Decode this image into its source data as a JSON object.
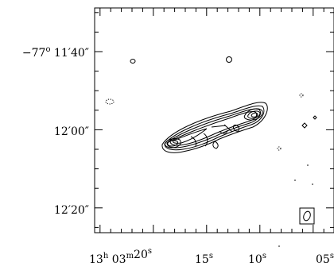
{
  "chart_data": {
    "type": "contour",
    "title": "",
    "xlabel": "",
    "ylabel": "",
    "x_tick_labels": [
      {
        "h": "13",
        "m": "03",
        "s": "20",
        "major": true
      },
      {
        "s": "15"
      },
      {
        "s": "10"
      },
      {
        "s": "05"
      }
    ],
    "y_tick_labels": [
      {
        "deg": "−77",
        "min": "11",
        "sec": "40"
      },
      {
        "min": "12",
        "sec": "00"
      },
      {
        "min": "12",
        "sec": "20"
      }
    ],
    "x_range_seconds": [
      23.5,
      4.5
    ],
    "y_range_arcsec_below_minus77_11_00": [
      28,
      78
    ],
    "contour_color": "#000000",
    "beam_shape": "ellipse",
    "negative_contours": "dotted"
  }
}
